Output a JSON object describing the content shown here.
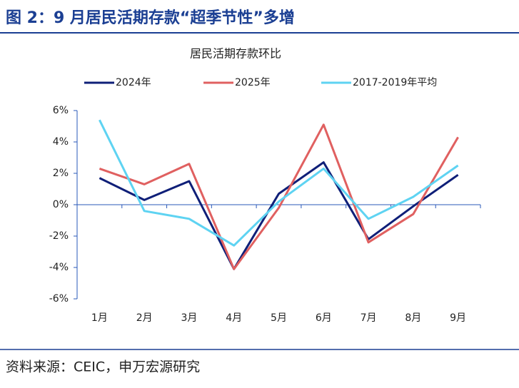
{
  "header": {
    "title": "图 2：9 月居民活期存款“超季节性”多增"
  },
  "chart_data": {
    "type": "line",
    "title": "居民活期存款环比",
    "categories": [
      "1月",
      "2月",
      "3月",
      "4月",
      "5月",
      "6月",
      "7月",
      "8月",
      "9月"
    ],
    "series": [
      {
        "name": "2024年",
        "color": "#0f1f78",
        "values": [
          1.7,
          0.3,
          1.5,
          -4.1,
          0.7,
          2.7,
          -2.2,
          -0.1,
          1.9
        ]
      },
      {
        "name": "2025年",
        "color": "#e06060",
        "values": [
          2.3,
          1.3,
          2.6,
          -4.1,
          -0.2,
          5.1,
          -2.4,
          -0.6,
          4.3
        ]
      },
      {
        "name": "2017-2019年平均",
        "color": "#5ed3f2",
        "values": [
          5.4,
          -0.4,
          -0.9,
          -2.6,
          0.2,
          2.3,
          -0.9,
          0.5,
          2.5
        ]
      }
    ],
    "ylim": [
      -6,
      6
    ],
    "yticks": [
      {
        "value": -6,
        "label": "-6%"
      },
      {
        "value": -4,
        "label": "-4%"
      },
      {
        "value": -2,
        "label": "-2%"
      },
      {
        "value": 0,
        "label": "0%"
      },
      {
        "value": 2,
        "label": "2%"
      },
      {
        "value": 4,
        "label": "4%"
      },
      {
        "value": 6,
        "label": "6%"
      }
    ],
    "legend": "top"
  },
  "footer": {
    "source": "资料来源：CEIC，申万宏源研究"
  }
}
